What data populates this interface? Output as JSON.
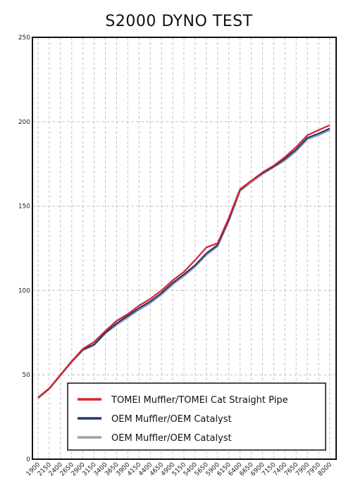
{
  "chart_data": {
    "type": "line",
    "title": "S2000  DYNO TEST",
    "xlabel": "",
    "ylabel": "",
    "ylim": [
      0,
      250
    ],
    "yticks": [
      "0",
      "50",
      "100",
      "150",
      "200",
      "250"
    ],
    "categories": [
      "1900",
      "2150",
      "2400",
      "2650",
      "2900",
      "3150",
      "3400",
      "3650",
      "3900",
      "4150",
      "4400",
      "4650",
      "4900",
      "5150",
      "5400",
      "5650",
      "5900",
      "6150",
      "6400",
      "6650",
      "6900",
      "7150",
      "7400",
      "7650",
      "7900",
      "7950",
      "8000"
    ],
    "grid": true,
    "legend_position": "bottom-right",
    "series": [
      {
        "name": "TOMEI Muffler/TOMEI Cat Straight Pipe",
        "color": "#d9212a",
        "values": [
          36.5,
          42,
          50,
          58,
          65.5,
          69.5,
          76,
          82,
          86,
          91,
          95,
          100,
          106,
          111,
          118,
          125.5,
          128,
          143,
          160,
          165,
          170,
          174,
          179,
          185,
          192,
          195,
          198
        ]
      },
      {
        "name": "OEM Muffler/OEM Catalyst",
        "color": "#1b3a7a",
        "values": [
          36.5,
          42,
          50,
          58,
          65,
          68,
          75,
          80.5,
          85,
          89.5,
          93.5,
          98.5,
          104.5,
          109.5,
          115,
          122,
          127,
          142,
          159.5,
          165,
          169.5,
          173.5,
          178,
          183.5,
          190.5,
          193,
          196
        ]
      },
      {
        "name": "OEM Muffler/OEM Catalyst",
        "color": "#9aa0a8",
        "values": [
          36,
          41.5,
          49.5,
          57.5,
          64.5,
          67.5,
          74.5,
          79.5,
          84,
          88.5,
          92.5,
          97.5,
          103.5,
          108.5,
          114,
          121,
          126,
          141,
          159,
          164,
          169,
          173,
          177,
          182.5,
          189.5,
          192,
          195
        ]
      }
    ]
  }
}
